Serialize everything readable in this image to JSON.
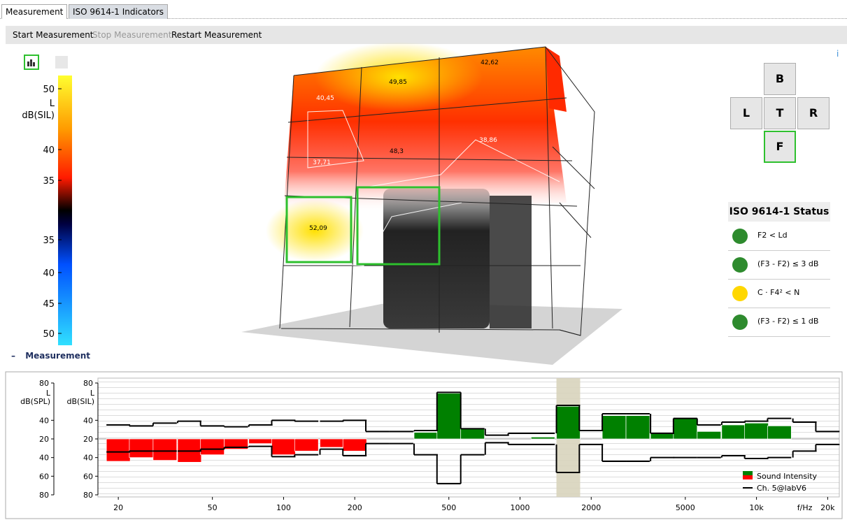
{
  "tabs": [
    "Measurement",
    "ISO 9614-1 Indicators"
  ],
  "toolbar": [
    "Start Measurement",
    "Stop Measurement",
    "Restart Measurement"
  ],
  "color_scale": {
    "labels": [
      "50",
      "40",
      "35",
      "35",
      "40",
      "45",
      "50"
    ],
    "unit": [
      "L",
      "dB(SIL)"
    ]
  },
  "heatmap": {
    "labels": [
      "40,45",
      "49,85",
      "42,62",
      "37,71",
      "48,3",
      "38,86",
      "52,09"
    ]
  },
  "info": "i",
  "view_buttons": [
    "B",
    "L",
    "T",
    "R",
    "F"
  ],
  "status": {
    "title": "ISO 9614-1 Status",
    "items": [
      {
        "label": "F2 < Ld",
        "color": "#2e8b2e"
      },
      {
        "label": "(F3 - F2) ≤ 3 dB",
        "color": "#2e8b2e"
      },
      {
        "label": "C · F4² < N",
        "color": "#ffd700"
      },
      {
        "label": "(F3 - F2) ≤ 1 dB",
        "color": "#2e8b2e"
      }
    ]
  },
  "section": {
    "toggle": "–",
    "title": "Measurement"
  },
  "chart_data": {
    "type": "bar",
    "xscale": "log",
    "x": [
      20,
      25,
      31.5,
      40,
      50,
      63,
      80,
      100,
      125,
      160,
      200,
      250,
      315,
      400,
      500,
      630,
      800,
      1000,
      1250,
      1600,
      2000,
      2500,
      3150,
      4000,
      5000,
      6300,
      8000,
      10000,
      12500,
      16000,
      20000
    ],
    "series": [
      {
        "name": "Sound Intensity",
        "color": "#008000",
        "values": [
          -44,
          -40,
          -43,
          -45,
          -37,
          -31,
          -25,
          -37,
          -33,
          -29,
          -33,
          null,
          null,
          27,
          69,
          31,
          null,
          null,
          22,
          55,
          null,
          45,
          45,
          26,
          42,
          28,
          35,
          37,
          34,
          null,
          null
        ]
      },
      {
        "name": "Ch. 5@labV6",
        "color": "#000000",
        "values": [
          35,
          34,
          37,
          39,
          34,
          33,
          35,
          40,
          39,
          39,
          40,
          28,
          28,
          29,
          70,
          31,
          24,
          26,
          26,
          56,
          29,
          47,
          47,
          26,
          42,
          35,
          38,
          39,
          42,
          38,
          28
        ],
        "lower": [
          -34,
          -33,
          -33,
          -33,
          -31,
          -29,
          -28,
          -39,
          -37,
          -31,
          -38,
          -25,
          -25,
          -37,
          -68,
          -37,
          -24,
          -26,
          -26,
          -56,
          -26,
          -44,
          -44,
          -40,
          -40,
          -40,
          -38,
          -41,
          -40,
          -33,
          -26
        ]
      }
    ],
    "negative_color": "#ff0000",
    "selected_band": 1600,
    "xlim": [
      16.4,
      22400
    ],
    "xticks": [
      20,
      50,
      100,
      200,
      500,
      1000,
      2000,
      5000,
      {
        "value": 10000,
        "label": "10k"
      },
      {
        "value": 20000,
        "label": "20k"
      }
    ],
    "xlabel": "f/Hz",
    "ylim": [
      -80,
      80
    ],
    "yticks": [
      80,
      40,
      20,
      {
        "value": -40,
        "label": "40"
      },
      {
        "value": -60,
        "label": "60"
      },
      {
        "value": -80,
        "label": "80"
      }
    ],
    "y2ticks": [
      80,
      40,
      20,
      {
        "value": -40,
        "label": "40"
      },
      {
        "value": -60,
        "label": "60"
      },
      {
        "value": -80,
        "label": "80"
      }
    ],
    "ylabel": [
      "L",
      "dB(SPL)"
    ],
    "y2label": [
      "L",
      "dB(SIL)"
    ]
  }
}
